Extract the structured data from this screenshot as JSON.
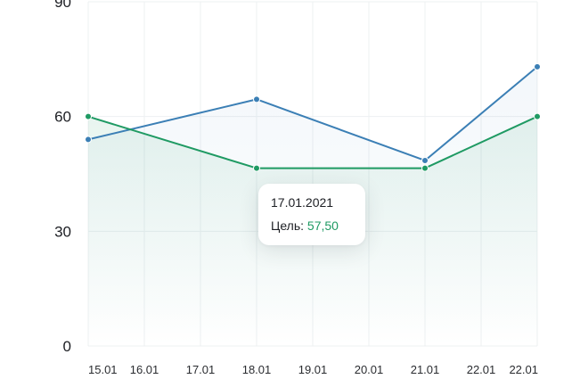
{
  "chart_data": {
    "type": "line",
    "categories": [
      "15.01",
      "16.01",
      "17.01",
      "18.01",
      "19.01",
      "20.01",
      "21.01",
      "22.01",
      "22.01"
    ],
    "ylim": [
      0,
      90
    ],
    "yticks": [
      0,
      30,
      60,
      90
    ],
    "grid": true,
    "series": [
      {
        "color": "#3b7fb5",
        "points": [
          {
            "x": 0,
            "y": 54
          },
          {
            "x": 3,
            "y": 64.5
          },
          {
            "x": 6,
            "y": 48.5
          },
          {
            "x": 8,
            "y": 73
          }
        ]
      },
      {
        "color": "#1f9a63",
        "points": [
          {
            "x": 0,
            "y": 60
          },
          {
            "x": 3,
            "y": 46.5
          },
          {
            "x": 6,
            "y": 46.5
          },
          {
            "x": 8,
            "y": 60
          }
        ]
      }
    ],
    "tooltip": {
      "date": "17.01.2021",
      "label": "Цель:",
      "value": "57,50",
      "value_color": "#1f9a63"
    }
  }
}
